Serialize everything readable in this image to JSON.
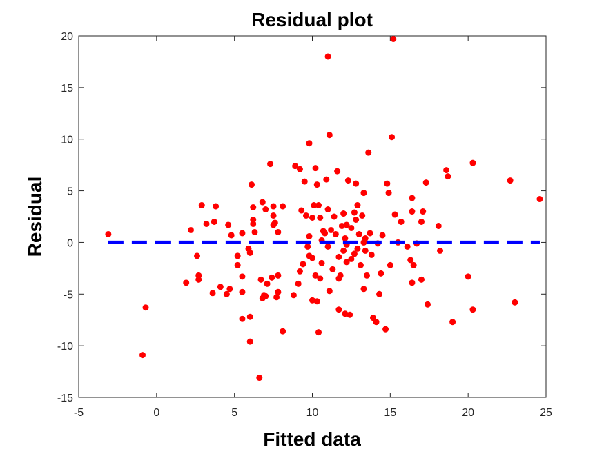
{
  "chart_data": {
    "type": "scatter",
    "title": "Residual plot",
    "x_label": "Fitted data",
    "y_label": "Residual",
    "series": [
      {
        "color": "#ff0000",
        "x": [
          -3.1,
          -0.9,
          -0.7,
          1.9,
          2.2,
          2.6,
          2.7,
          2.7,
          2.9,
          3.2,
          3.6,
          3.7,
          3.8,
          4.1,
          4.5,
          4.6,
          4.7,
          4.8,
          5.2,
          5.2,
          5.5,
          5.5,
          5.5,
          5.5,
          5.9,
          6.0,
          6.0,
          6.0,
          6.1,
          6.2,
          6.2,
          6.2,
          6.3,
          6.6,
          6.7,
          6.8,
          6.8,
          6.9,
          7.0,
          7.0,
          7.1,
          7.3,
          7.4,
          7.5,
          7.5,
          7.5,
          7.6,
          7.7,
          7.8,
          7.8,
          7.8,
          8.1,
          8.1,
          8.8,
          8.9,
          9.1,
          9.2,
          9.2,
          9.3,
          9.4,
          9.5,
          9.6,
          9.7,
          9.8,
          9.8,
          10.0,
          10.0,
          10.0,
          10.1,
          10.2,
          10.2,
          10.3,
          10.3,
          10.4,
          10.4,
          10.5,
          10.6,
          10.6,
          10.7,
          10.8,
          10.9,
          11.0,
          11.0,
          11.1,
          11.1,
          11.2,
          11.3,
          11.4,
          11.5,
          11.6,
          11.7,
          11.7,
          11.8,
          11.9,
          12.0,
          12.0,
          12.1,
          12.1,
          12.2,
          12.3,
          12.4,
          12.5,
          12.5,
          12.7,
          12.7,
          12.8,
          12.9,
          12.9,
          13.0,
          13.1,
          13.2,
          13.3,
          13.3,
          13.3,
          13.4,
          13.5,
          13.6,
          13.7,
          13.8,
          13.9,
          14.1,
          14.2,
          14.3,
          14.4,
          14.5,
          14.7,
          14.8,
          14.9,
          15.0,
          15.1,
          15.2,
          15.3,
          15.5,
          15.7,
          16.1,
          16.3,
          16.4,
          16.4,
          16.4,
          16.5,
          16.7,
          17.0,
          17.0,
          17.1,
          17.4,
          17.3,
          18.1,
          18.2,
          18.6,
          18.7,
          19.0,
          20.0,
          20.3,
          20.3,
          22.7,
          23.0,
          24.6,
          12.2,
          11.0,
          11.7,
          10.5,
          9.8,
          12.8,
          13.4,
          12.2
        ],
        "values": [
          0.8,
          -10.9,
          -6.3,
          -3.9,
          1.2,
          -1.3,
          -3.2,
          -3.6,
          3.6,
          1.8,
          -4.9,
          2.0,
          3.5,
          -4.3,
          -5.0,
          1.7,
          -4.5,
          0.7,
          -1.3,
          -2.2,
          0.9,
          -7.4,
          -4.8,
          -3.3,
          -0.6,
          -1.0,
          -9.6,
          -7.2,
          5.6,
          3.4,
          2.2,
          1.8,
          1.0,
          -13.1,
          -3.6,
          3.9,
          -5.4,
          -5.1,
          -5.2,
          3.2,
          -4.0,
          7.6,
          -3.4,
          2.6,
          3.5,
          1.7,
          1.9,
          -5.3,
          -3.2,
          -4.8,
          1.0,
          -8.6,
          3.5,
          -5.1,
          7.4,
          -4.0,
          -2.8,
          7.1,
          3.1,
          -2.1,
          5.9,
          2.6,
          -0.4,
          0.6,
          9.6,
          -1.5,
          -5.6,
          2.4,
          3.6,
          -3.2,
          7.2,
          -5.7,
          5.6,
          3.6,
          -8.7,
          2.4,
          0.2,
          -2.0,
          1.1,
          0.9,
          6.1,
          18.0,
          -0.4,
          10.4,
          -4.7,
          1.2,
          -2.6,
          2.5,
          0.8,
          6.9,
          -1.4,
          -6.5,
          -3.2,
          1.6,
          2.8,
          -0.8,
          -6.9,
          0.4,
          -0.2,
          6.0,
          -7.0,
          -1.6,
          1.4,
          2.9,
          -1.1,
          5.7,
          3.6,
          -0.6,
          0.8,
          -2.2,
          2.6,
          4.8,
          -4.5,
          0.0,
          -0.8,
          -3.2,
          8.7,
          0.9,
          -1.2,
          -7.3,
          -7.7,
          -0.1,
          -5.0,
          -3.0,
          0.7,
          -8.4,
          5.7,
          4.8,
          -2.2,
          10.2,
          19.7,
          2.7,
          0.0,
          2.0,
          -0.4,
          -1.7,
          -3.9,
          4.3,
          3.0,
          -2.2,
          -0.1,
          2.0,
          -3.6,
          3.0,
          -6.0,
          5.8,
          1.6,
          -0.8,
          7.0,
          6.4,
          -7.7,
          -3.3,
          -6.5,
          7.7,
          6.0,
          -5.8,
          4.2,
          1.7,
          3.2,
          -3.5,
          -3.5,
          -1.3,
          2.2,
          0.4,
          -1.9
        ]
      }
    ],
    "reference_line": {
      "x": [
        -3.1,
        24.6
      ],
      "y": [
        0,
        0
      ],
      "color": "#0000ff"
    },
    "xlim": [
      -5,
      25
    ],
    "xticks": [
      -5,
      0,
      5,
      10,
      15,
      20,
      25
    ],
    "ylim": [
      -15,
      20
    ],
    "yticks": [
      -15,
      -10,
      -5,
      0,
      5,
      10,
      15,
      20
    ]
  }
}
